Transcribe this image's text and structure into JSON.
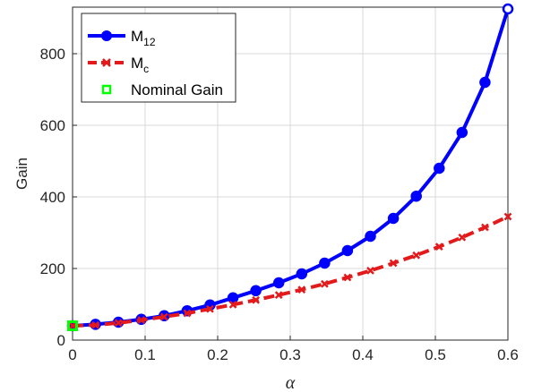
{
  "chart_data": {
    "type": "line",
    "xlabel": "α",
    "ylabel": "Gain",
    "xlim": [
      0,
      0.6
    ],
    "ylim": [
      0,
      930
    ],
    "xticks": [
      "0",
      "0.1",
      "0.2",
      "0.3",
      "0.4",
      "0.5",
      "0.6"
    ],
    "yticks": [
      "0",
      "200",
      "400",
      "600",
      "800"
    ],
    "grid": true,
    "legend_position": "top-left",
    "legend": {
      "m12_main": "M",
      "m12_sub": "12",
      "mc_main": "M",
      "mc_sub": "c",
      "nominal": "Nominal Gain"
    },
    "series": [
      {
        "name": "M12",
        "color": "#0000ff",
        "style": "solid",
        "marker": "circle",
        "x": [
          0,
          0.0316,
          0.0632,
          0.0947,
          0.1263,
          0.1579,
          0.1895,
          0.2211,
          0.2526,
          0.2842,
          0.3158,
          0.3474,
          0.3789,
          0.4105,
          0.4421,
          0.4737,
          0.5053,
          0.5368,
          0.5684,
          0.6
        ],
        "y": [
          40,
          44,
          50,
          58,
          68,
          82,
          98,
          118,
          138,
          160,
          185,
          215,
          250,
          290,
          340,
          402,
          480,
          580,
          720,
          925
        ]
      },
      {
        "name": "Mc",
        "color": "#e31a1c",
        "style": "dashed",
        "marker": "x",
        "x": [
          0,
          0.0316,
          0.0632,
          0.0947,
          0.1263,
          0.1579,
          0.1895,
          0.2211,
          0.2526,
          0.2842,
          0.3158,
          0.3474,
          0.3789,
          0.4105,
          0.4421,
          0.4737,
          0.5053,
          0.5368,
          0.5684,
          0.6
        ],
        "y": [
          40,
          42,
          48,
          56,
          65,
          75,
          87,
          99,
          112,
          126,
          141,
          157,
          175,
          194,
          215,
          237,
          261,
          287,
          315,
          345
        ]
      },
      {
        "name": "Nominal Gain",
        "color": "#00ff00",
        "marker": "square",
        "x": [
          0
        ],
        "y": [
          40
        ]
      }
    ]
  }
}
